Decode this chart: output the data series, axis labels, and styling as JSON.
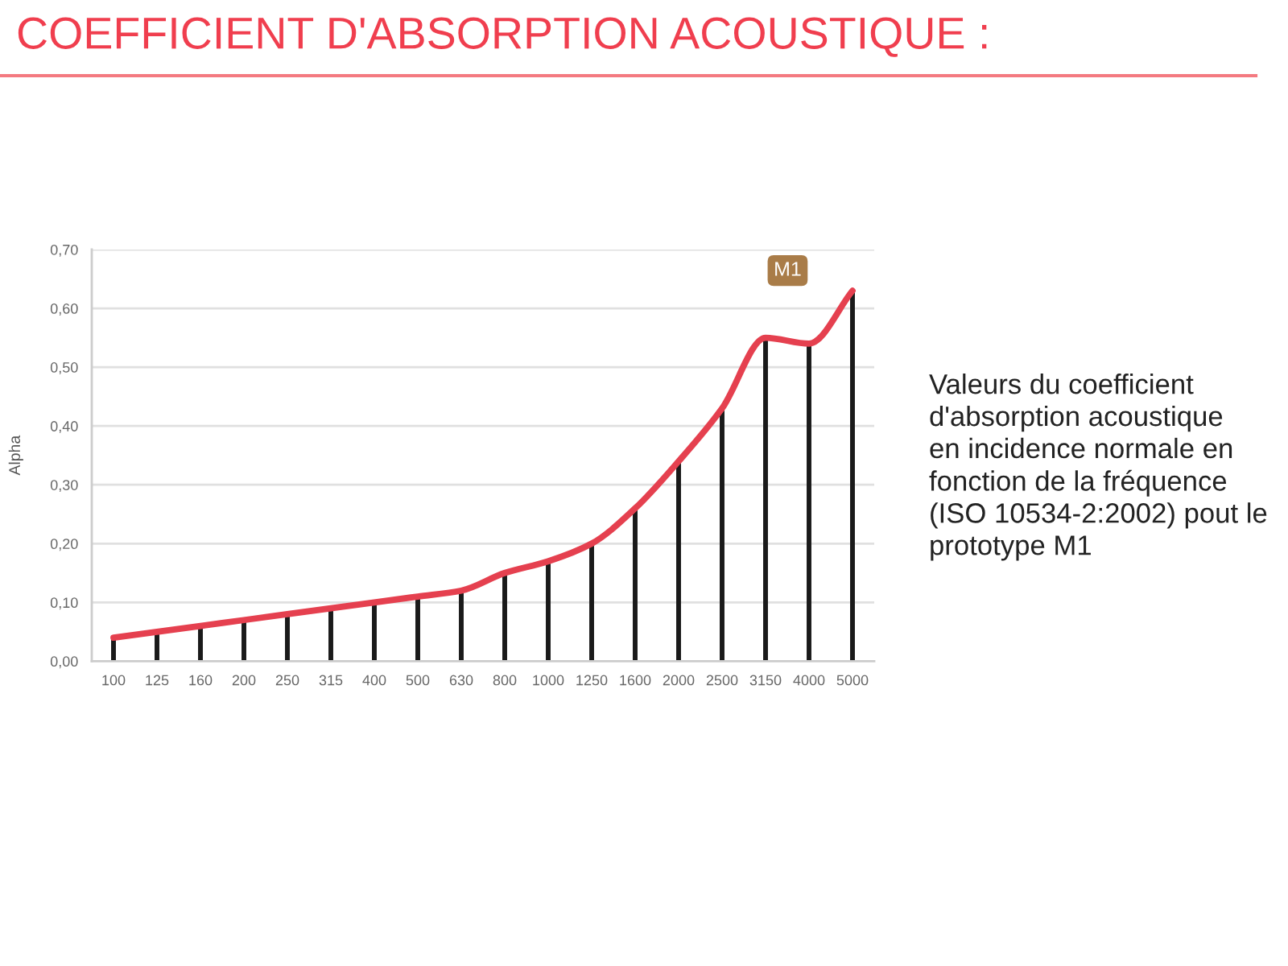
{
  "chart_data": {
    "type": "bar",
    "title": "COEFFICIENT D'ABSORPTION ACOUSTIQUE :",
    "ylabel": "Alpha",
    "annotations": [
      "Valeurs du coefficient\nd'absorption acoustique\nen incidence normale en\nfonction de la fréquence\n(ISO 10534-2:2002) pout le\nprototype M1"
    ],
    "categories": [
      "100",
      "125",
      "160",
      "200",
      "250",
      "315",
      "400",
      "500",
      "630",
      "800",
      "1000",
      "1250",
      "1600",
      "2000",
      "2500",
      "3150",
      "4000",
      "5000"
    ],
    "series": [
      {
        "color": "#1a1a1a",
        "values": [
          0.04,
          0.05,
          0.06,
          0.07,
          0.08,
          0.09,
          0.1,
          0.11,
          0.12,
          0.15,
          0.17,
          0.2,
          0.26,
          0.34,
          0.43,
          0.55,
          0.54,
          0.63
        ]
      },
      {
        "type": "line",
        "name": "M1",
        "color": "#e5404f",
        "values": [
          0.04,
          0.05,
          0.06,
          0.07,
          0.08,
          0.09,
          0.1,
          0.11,
          0.12,
          0.15,
          0.17,
          0.2,
          0.26,
          0.34,
          0.43,
          0.55,
          0.54,
          0.63
        ]
      }
    ],
    "ylim": [
      0,
      0.7
    ],
    "yticks": [
      {
        "value": 0,
        "label": "0,00"
      },
      {
        "value": 0.1,
        "label": "0,10"
      },
      {
        "value": 0.2,
        "label": "0,20"
      },
      {
        "value": 0.3,
        "label": "0,30"
      },
      {
        "value": 0.4,
        "label": "0,40"
      },
      {
        "value": 0.5,
        "label": "0,50"
      },
      {
        "value": 0.6,
        "label": "0,60"
      },
      {
        "value": 0.7,
        "label": "0,70"
      }
    ],
    "grid": "y"
  }
}
